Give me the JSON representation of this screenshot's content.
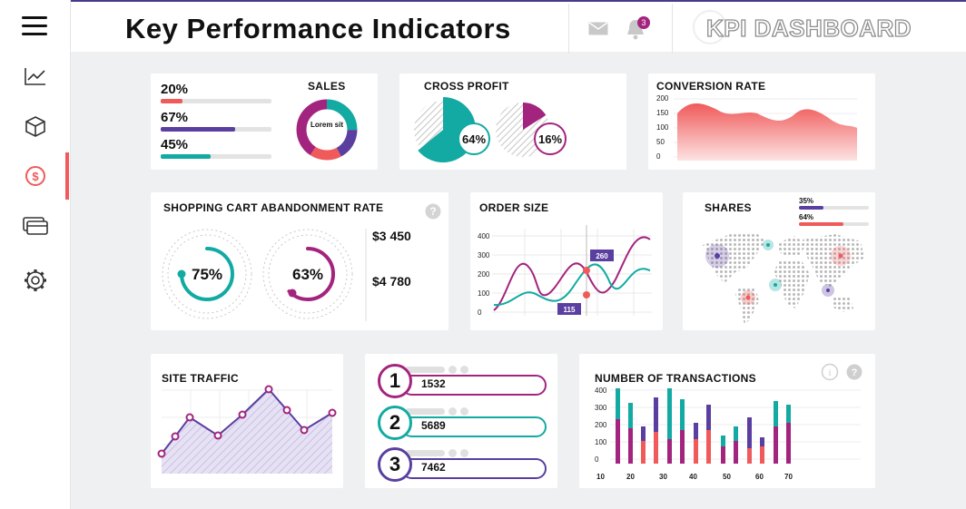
{
  "header": {
    "title": "Key Performance Indicators",
    "brand": "KPI DASHBOARD",
    "notification_count": "3"
  },
  "sidebar": {
    "items": [
      {
        "icon": "line-chart-icon"
      },
      {
        "icon": "box-icon"
      },
      {
        "icon": "dollar-icon",
        "active": true
      },
      {
        "icon": "cards-icon"
      },
      {
        "icon": "gear-icon"
      }
    ]
  },
  "sales": {
    "title": "SALES",
    "bars": [
      {
        "label": "20%",
        "value": 0.2,
        "color": "#f05a5a"
      },
      {
        "label": "67%",
        "value": 0.67,
        "color": "#5a3fa0"
      },
      {
        "label": "45%",
        "value": 0.45,
        "color": "#12aaa2"
      }
    ],
    "donut_label": "Lorem sit"
  },
  "cross_profit": {
    "title": "CROSS PROFIT",
    "pies": [
      {
        "label": "64%",
        "value": 64,
        "color": "#12aaa2"
      },
      {
        "label": "16%",
        "value": 16,
        "color": "#a3247e"
      }
    ]
  },
  "conversion_rate": {
    "title": "CONVERSION RATE",
    "yticks": [
      "200",
      "150",
      "100",
      "50",
      "0"
    ]
  },
  "cart_abandonment": {
    "title": "SHOPPING CART ABANDONMENT RATE",
    "gauges": [
      {
        "label": "75%",
        "value": 75,
        "color": "#12aaa2"
      },
      {
        "label": "63%",
        "value": 63,
        "color": "#a3247e"
      }
    ],
    "amounts": [
      "$3 450",
      "$4 780"
    ]
  },
  "order_size": {
    "title": "ORDER SIZE",
    "yticks": [
      "400",
      "300",
      "200",
      "100",
      "0"
    ],
    "callouts": [
      {
        "label": "260",
        "value": 260
      },
      {
        "label": "115",
        "value": 115
      }
    ]
  },
  "shares": {
    "title": "SHARES",
    "bars": [
      {
        "label": "35%",
        "value": 0.35,
        "color": "#5a3fa0"
      },
      {
        "label": "64%",
        "value": 0.64,
        "color": "#f05a5a"
      }
    ]
  },
  "site_traffic": {
    "title": "SITE TRAFFIC"
  },
  "ranking": {
    "items": [
      {
        "rank": "1",
        "value": "1532",
        "color": "#a3247e"
      },
      {
        "rank": "2",
        "value": "5689",
        "color": "#12aaa2"
      },
      {
        "rank": "3",
        "value": "7462",
        "color": "#5a3fa0"
      }
    ]
  },
  "transactions": {
    "title": "NUMBER OF TRANSACTIONS",
    "yticks": [
      "400",
      "300",
      "200",
      "100",
      "0"
    ],
    "xticks": [
      "10",
      "20",
      "30",
      "40",
      "50",
      "60",
      "70"
    ]
  },
  "colors": {
    "teal": "#12aaa2",
    "magenta": "#a3247e",
    "purple": "#5a3fa0",
    "coral": "#f05a5a"
  }
}
